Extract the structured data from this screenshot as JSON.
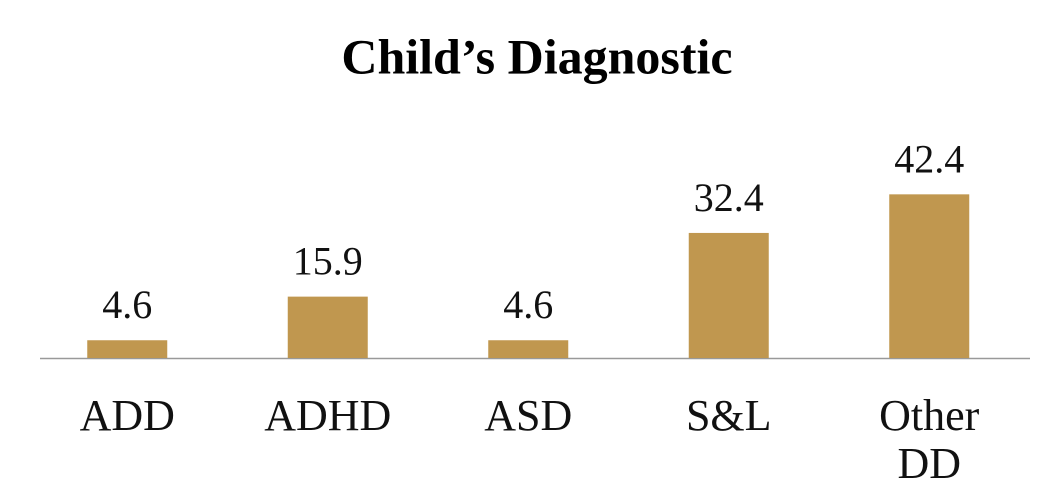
{
  "chart_data": {
    "type": "bar",
    "title": "Child’s Diagnostic",
    "categories": [
      "ADD",
      "ADHD",
      "ASD",
      "S&L",
      "Other DD"
    ],
    "values": [
      4.6,
      15.9,
      4.6,
      32.4,
      42.4
    ],
    "color": "#c0974f"
  }
}
